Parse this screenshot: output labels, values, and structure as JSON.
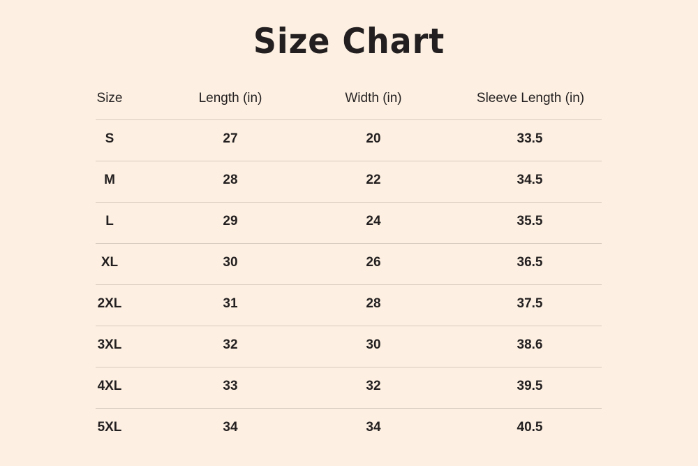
{
  "title": "Size Chart",
  "headers": [
    "Size",
    "Length (in)",
    "Width (in)",
    "Sleeve Length (in)"
  ],
  "rows": [
    [
      "S",
      "27",
      "20",
      "33.5"
    ],
    [
      "M",
      "28",
      "22",
      "34.5"
    ],
    [
      "L",
      "29",
      "24",
      "35.5"
    ],
    [
      "XL",
      "30",
      "26",
      "36.5"
    ],
    [
      "2XL",
      "31",
      "28",
      "37.5"
    ],
    [
      "3XL",
      "32",
      "30",
      "38.6"
    ],
    [
      "4XL",
      "33",
      "32",
      "39.5"
    ],
    [
      "5XL",
      "34",
      "34",
      "40.5"
    ]
  ],
  "colors": {
    "background": "#fdf0e2",
    "text": "#231f20",
    "divider": "#d8cbbf"
  }
}
